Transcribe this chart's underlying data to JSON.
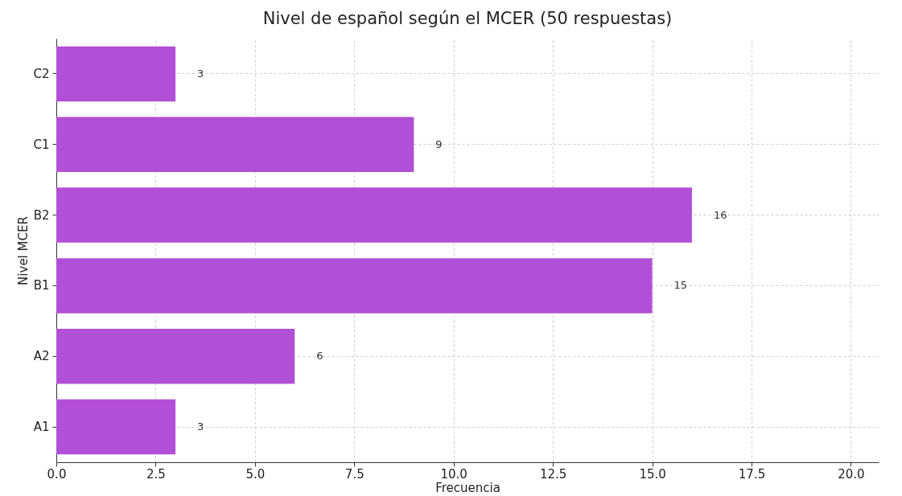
{
  "chart_data": {
    "type": "bar",
    "orientation": "horizontal",
    "title": "Nivel de español según el MCER (50 respuestas)",
    "xlabel": "Frecuencia",
    "ylabel": "Nivel MCER",
    "categories": [
      "C2",
      "C1",
      "B2",
      "B1",
      "A2",
      "A1"
    ],
    "values": [
      3,
      9,
      16,
      15,
      6,
      3
    ],
    "color": "#b150d6",
    "data_labels": true,
    "xlim": [
      0,
      20.7
    ],
    "xticks": [
      {
        "value": 0,
        "label": "0.0"
      },
      {
        "value": 2.5,
        "label": "2.5"
      },
      {
        "value": 5,
        "label": "5.0"
      },
      {
        "value": 7.5,
        "label": "7.5"
      },
      {
        "value": 10,
        "label": "10.0"
      },
      {
        "value": 12.5,
        "label": "12.5"
      },
      {
        "value": 15,
        "label": "15.0"
      },
      {
        "value": 17.5,
        "label": "17.5"
      },
      {
        "value": 20,
        "label": "20.0"
      }
    ],
    "grid": true
  }
}
